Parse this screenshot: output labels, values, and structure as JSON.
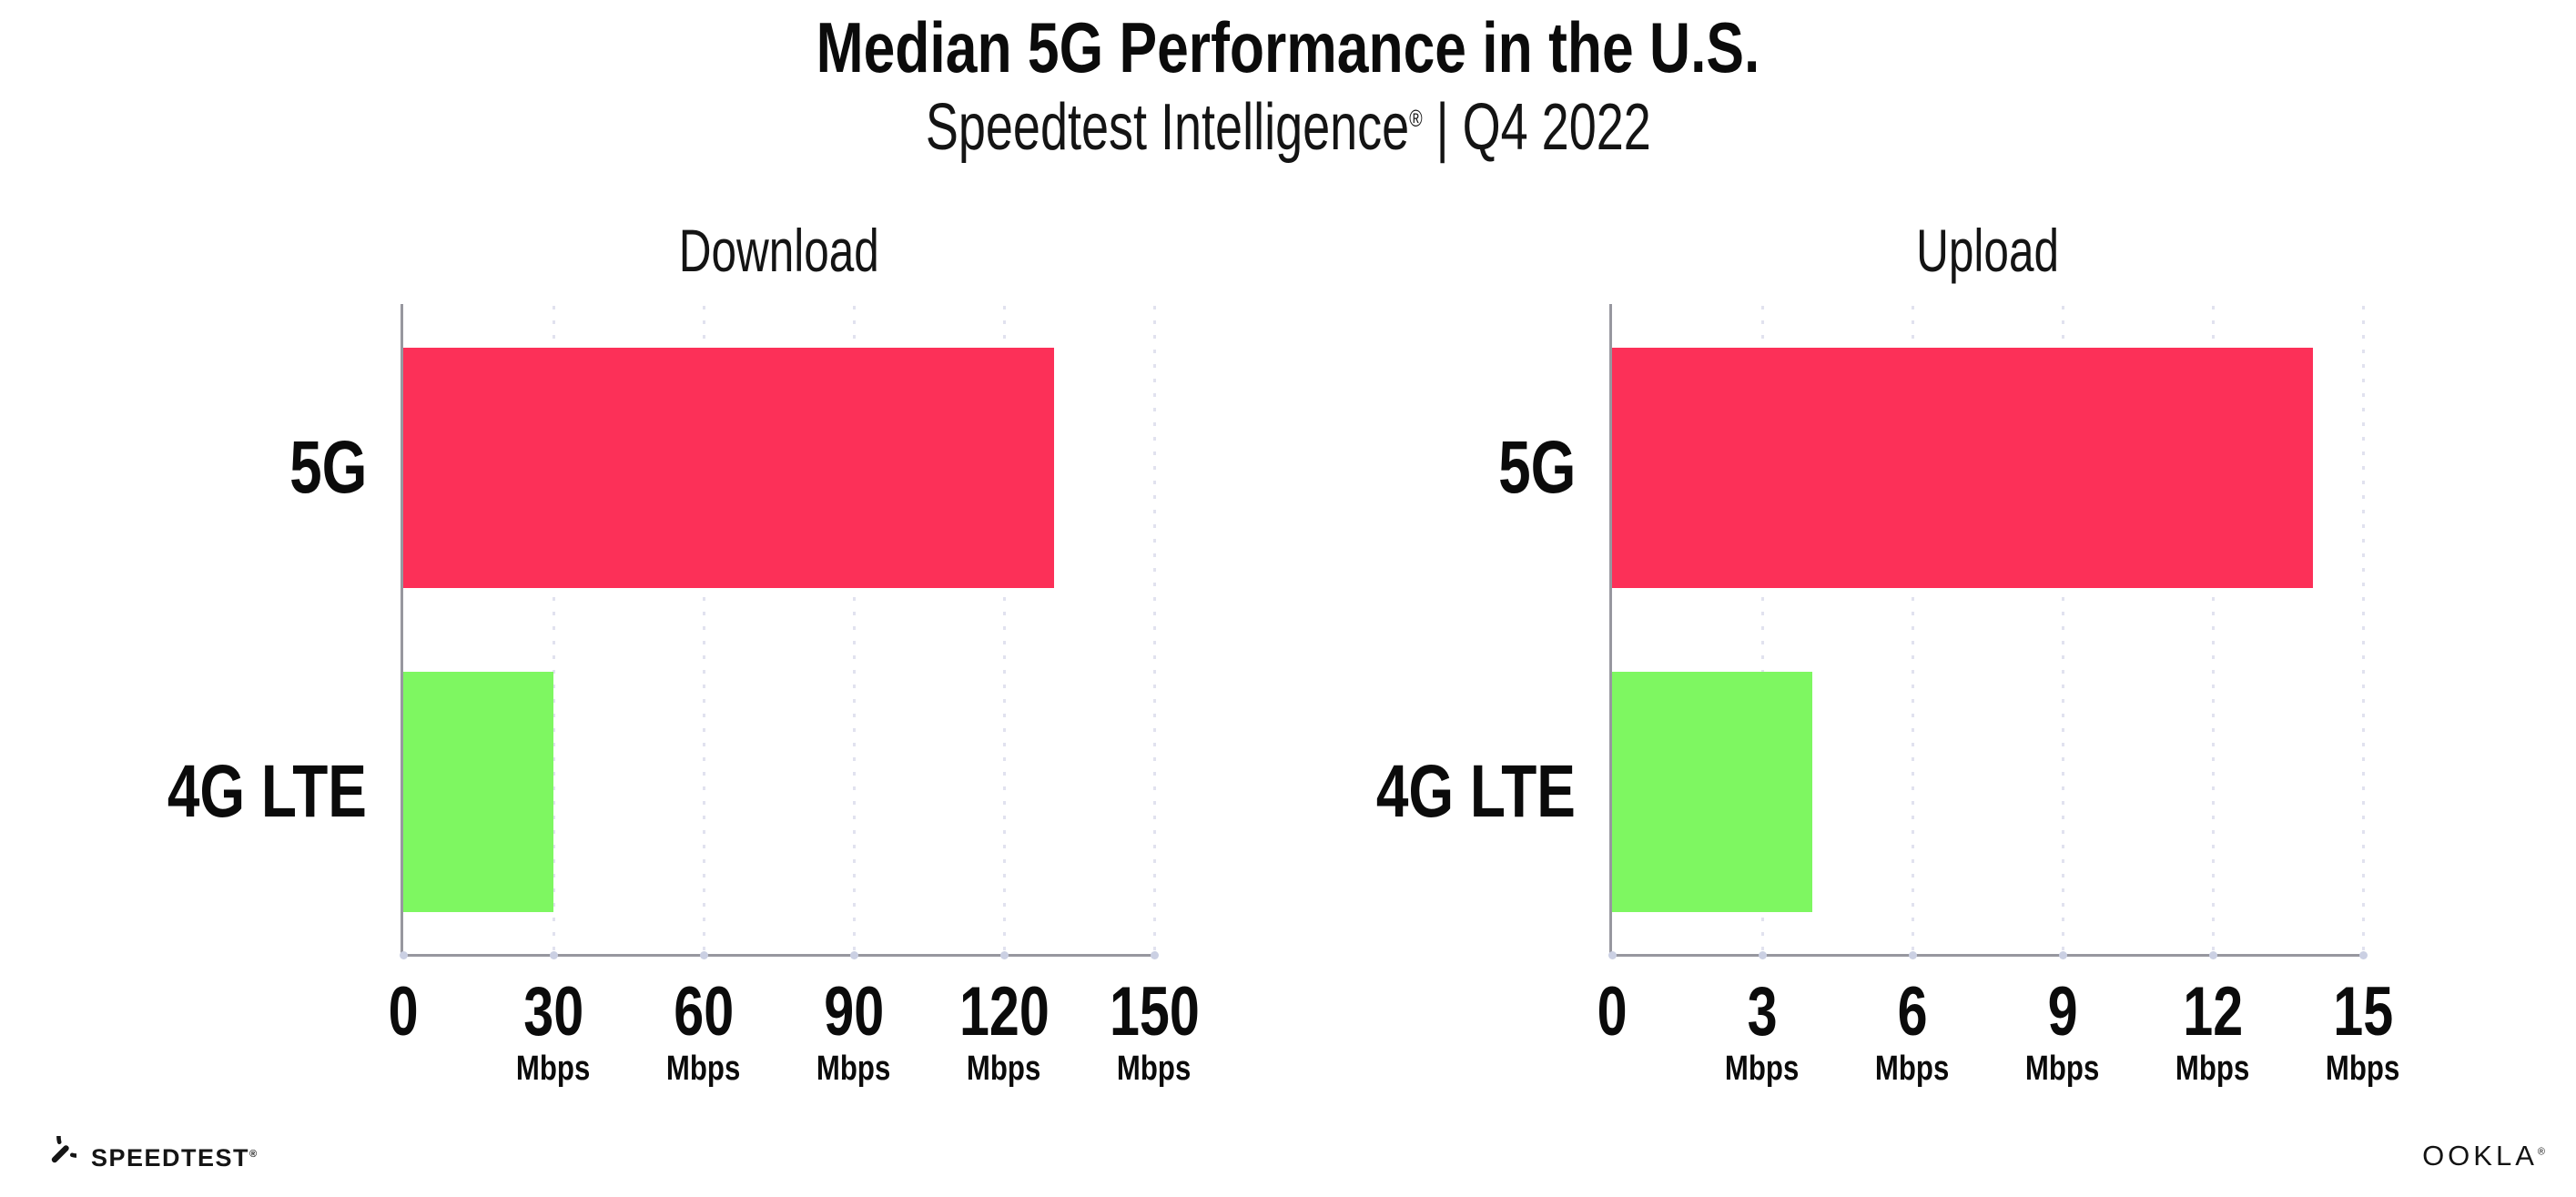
{
  "header": {
    "title": "Median 5G Performance in the U.S.",
    "subtitle": {
      "brand": "Speedtest Intelligence",
      "reg": "®",
      "rest": " | Q4 2022"
    }
  },
  "chart_data": [
    {
      "type": "bar",
      "orientation": "horizontal",
      "title": "Download",
      "categories": [
        "5G",
        "4G LTE"
      ],
      "values": [
        130,
        30
      ],
      "unit": "Mbps",
      "xlabel": "",
      "ylabel": "",
      "xlim": [
        0,
        150
      ],
      "xticks": [
        0,
        30,
        60,
        90,
        120,
        150
      ],
      "grid": "vertical-dotted",
      "legend": "none",
      "bar_colors": [
        "#FC3058",
        "#7EF761"
      ]
    },
    {
      "type": "bar",
      "orientation": "horizontal",
      "title": "Upload",
      "categories": [
        "5G",
        "4G LTE"
      ],
      "values": [
        14,
        4
      ],
      "unit": "Mbps",
      "xlabel": "",
      "ylabel": "",
      "xlim": [
        0,
        15
      ],
      "xticks": [
        0,
        3,
        6,
        9,
        12,
        15
      ],
      "grid": "vertical-dotted",
      "legend": "none",
      "bar_colors": [
        "#FC3058",
        "#7EF761"
      ]
    }
  ],
  "colors": {
    "bar_5g": "#FC3058",
    "bar_4g_lte": "#7EF761",
    "axis": "#97979F",
    "grid_dot": "#E1E2EF",
    "tick_dot": "#CBD0E3",
    "text": "#0B0B0B",
    "background": "#FFFFFF"
  },
  "footer": {
    "speedtest_label": "SPEEDTEST",
    "speedtest_reg": "®",
    "ookla_label": "OOKLA",
    "ookla_reg": "®"
  }
}
